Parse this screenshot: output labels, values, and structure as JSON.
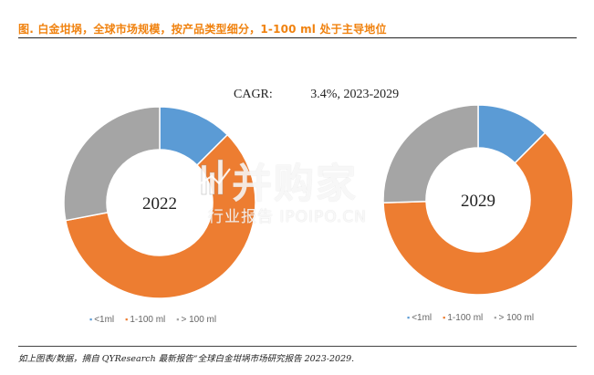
{
  "title": "图.   白金坩埚，全球市场规模，按产品类型细分，1-100 ml 处于主导地位",
  "cagr": {
    "label": "CAGR:",
    "value": "3.4%, 2023-2029"
  },
  "source": "如上图表/数据，摘自 QYResearch 最新报告“全球白金坩埚市场研究报告 2023-2029.",
  "watermark": {
    "main": "并购家",
    "sub": "行业报告 IPOIPO.CN"
  },
  "colors": {
    "title": "#f0820f",
    "s1": "#5b9bd5",
    "s2": "#ed7d31",
    "s3": "#a5a5a5"
  },
  "chart_data": [
    {
      "type": "pie",
      "title": "2022",
      "categories": [
        "<1ml",
        "1-100 ml",
        "> 100 ml"
      ],
      "values": [
        12.5,
        59.5,
        28.0
      ],
      "legend": "bottom"
    },
    {
      "type": "pie",
      "title": "2029",
      "categories": [
        "<1ml",
        "1-100 ml",
        "> 100 ml"
      ],
      "values": [
        12.5,
        62.0,
        25.5
      ],
      "legend": "bottom"
    }
  ]
}
